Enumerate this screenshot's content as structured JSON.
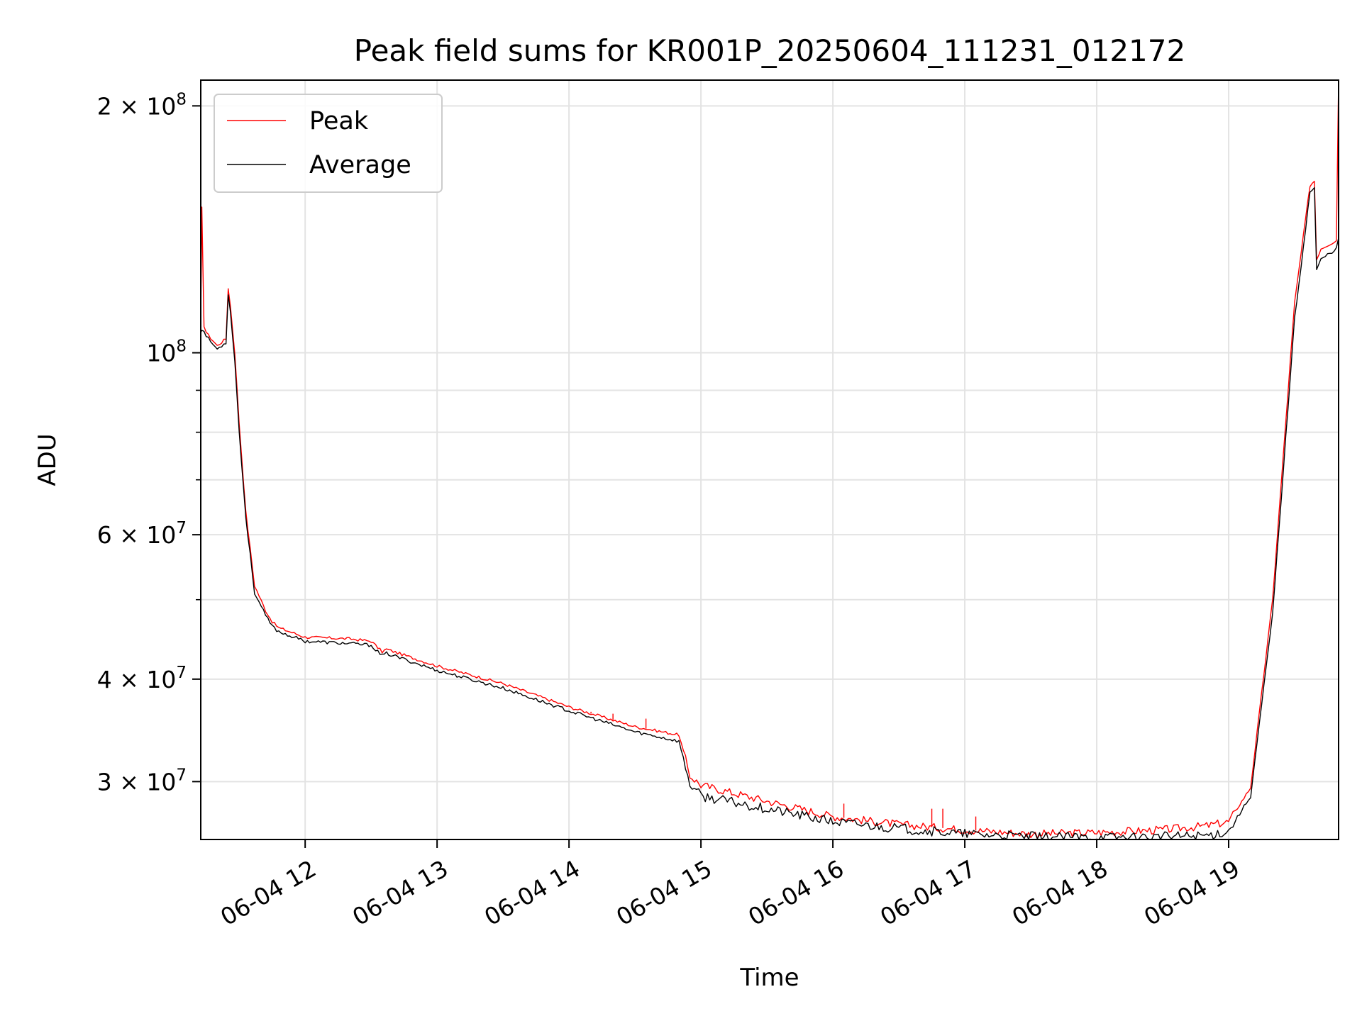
{
  "chart_data": {
    "type": "line",
    "title": "Peak field sums for KR001P_20250604_111231_012172",
    "xlabel": "Time",
    "ylabel": "ADU",
    "y_scale": "log",
    "ylim": [
      25500000,
      215000000
    ],
    "xlim": [
      "2025-06-04 11:12:31",
      "2025-06-04 19:50:00"
    ],
    "x_ticks": [
      {
        "value": "2025-06-04 12:00",
        "label": "06-04 12"
      },
      {
        "value": "2025-06-04 13:00",
        "label": "06-04 13"
      },
      {
        "value": "2025-06-04 14:00",
        "label": "06-04 14"
      },
      {
        "value": "2025-06-04 15:00",
        "label": "06-04 15"
      },
      {
        "value": "2025-06-04 16:00",
        "label": "06-04 16"
      },
      {
        "value": "2025-06-04 17:00",
        "label": "06-04 17"
      },
      {
        "value": "2025-06-04 18:00",
        "label": "06-04 18"
      },
      {
        "value": "2025-06-04 19:00",
        "label": "06-04 19"
      }
    ],
    "y_major_ticks": [
      {
        "value": 30000000,
        "base": "3",
        "exp": "7"
      },
      {
        "value": 40000000,
        "base": "4",
        "exp": "7"
      },
      {
        "value": 60000000,
        "base": "6",
        "exp": "7"
      },
      {
        "value": 100000000,
        "base": "",
        "exp": "8"
      },
      {
        "value": 200000000,
        "base": "2",
        "exp": "8"
      }
    ],
    "y_minor_ticks": [
      50000000,
      70000000,
      80000000,
      90000000
    ],
    "grid": true,
    "legend_position": "top-left",
    "series": [
      {
        "name": "Peak",
        "color": "#ff0000",
        "x": [
          "2025-06-04 11:12:31",
          "2025-06-04 11:13:00",
          "2025-06-04 11:14:00",
          "2025-06-04 11:15:00",
          "2025-06-04 11:16:00",
          "2025-06-04 11:20:00",
          "2025-06-04 11:24:00",
          "2025-06-04 11:25:00",
          "2025-06-04 11:26:00",
          "2025-06-04 11:28:00",
          "2025-06-04 11:30:00",
          "2025-06-04 11:33:00",
          "2025-06-04 11:37:00",
          "2025-06-04 11:42:00",
          "2025-06-04 11:45:00",
          "2025-06-04 11:48:00",
          "2025-06-04 12:00:00",
          "2025-06-04 12:20:00",
          "2025-06-04 12:30:00",
          "2025-06-04 12:35:00",
          "2025-06-04 12:37:00",
          "2025-06-04 13:00:00",
          "2025-06-04 13:30:00",
          "2025-06-04 14:00:00",
          "2025-06-04 14:30:00",
          "2025-06-04 14:50:00",
          "2025-06-04 14:55:00",
          "2025-06-04 15:00:00",
          "2025-06-04 15:30:00",
          "2025-06-04 16:00:00",
          "2025-06-04 16:30:00",
          "2025-06-04 17:00:00",
          "2025-06-04 17:30:00",
          "2025-06-04 18:00:00",
          "2025-06-04 18:30:00",
          "2025-06-04 18:50:00",
          "2025-06-04 19:00:00",
          "2025-06-04 19:10:00",
          "2025-06-04 19:20:00",
          "2025-06-04 19:30:00",
          "2025-06-04 19:37:00",
          "2025-06-04 19:39:00",
          "2025-06-04 19:40:00",
          "2025-06-04 19:42:00",
          "2025-06-04 19:49:00",
          "2025-06-04 19:50:00"
        ],
        "values": [
          108000000,
          150000000,
          108000000,
          106000000,
          105000000,
          102000000,
          104000000,
          120000000,
          114000000,
          100000000,
          82000000,
          64000000,
          52000000,
          48500000,
          47000000,
          46200000,
          45000000,
          44800000,
          44500000,
          43200000,
          43500000,
          41500000,
          39500000,
          37000000,
          35000000,
          34200000,
          30500000,
          29700000,
          28400000,
          27200000,
          26600000,
          26200000,
          25900000,
          26000000,
          26200000,
          26500000,
          26800000,
          29500000,
          50000000,
          115000000,
          160000000,
          162000000,
          130000000,
          134000000,
          137000000,
          215000000
        ],
        "spikes": [
          {
            "x": "2025-06-04 14:10:00",
            "value": 36500000
          },
          {
            "x": "2025-06-04 14:20:00",
            "value": 36300000
          },
          {
            "x": "2025-06-04 14:35:00",
            "value": 35800000
          },
          {
            "x": "2025-06-04 16:05:00",
            "value": 28200000
          },
          {
            "x": "2025-06-04 16:45:00",
            "value": 27800000
          },
          {
            "x": "2025-06-04 16:50:00",
            "value": 27800000
          },
          {
            "x": "2025-06-04 17:05:00",
            "value": 27200000
          }
        ]
      },
      {
        "name": "Average",
        "color": "#000000",
        "x": [
          "2025-06-04 11:12:31",
          "2025-06-04 11:13:00",
          "2025-06-04 11:16:00",
          "2025-06-04 11:20:00",
          "2025-06-04 11:24:00",
          "2025-06-04 11:25:00",
          "2025-06-04 11:26:00",
          "2025-06-04 11:28:00",
          "2025-06-04 11:30:00",
          "2025-06-04 11:33:00",
          "2025-06-04 11:37:00",
          "2025-06-04 11:42:00",
          "2025-06-04 11:45:00",
          "2025-06-04 11:48:00",
          "2025-06-04 12:00:00",
          "2025-06-04 12:20:00",
          "2025-06-04 12:30:00",
          "2025-06-04 12:35:00",
          "2025-06-04 12:37:00",
          "2025-06-04 13:00:00",
          "2025-06-04 13:30:00",
          "2025-06-04 14:00:00",
          "2025-06-04 14:30:00",
          "2025-06-04 14:50:00",
          "2025-06-04 14:55:00",
          "2025-06-04 15:00:00",
          "2025-06-04 15:30:00",
          "2025-06-04 16:00:00",
          "2025-06-04 16:30:00",
          "2025-06-04 17:00:00",
          "2025-06-04 17:30:00",
          "2025-06-04 18:00:00",
          "2025-06-04 18:30:00",
          "2025-06-04 18:50:00",
          "2025-06-04 19:00:00",
          "2025-06-04 19:10:00",
          "2025-06-04 19:20:00",
          "2025-06-04 19:30:00",
          "2025-06-04 19:37:00",
          "2025-06-04 19:39:00",
          "2025-06-04 19:40:00",
          "2025-06-04 19:42:00",
          "2025-06-04 19:49:00",
          "2025-06-04 19:50:00"
        ],
        "values": [
          106000000,
          107000000,
          104000000,
          101000000,
          103000000,
          118000000,
          112000000,
          98000000,
          80000000,
          63000000,
          51000000,
          47800000,
          46400000,
          45700000,
          44500000,
          44200000,
          44000000,
          42700000,
          43000000,
          41000000,
          39000000,
          36600000,
          34500000,
          33600000,
          29800000,
          28800000,
          27800000,
          26800000,
          26300000,
          25900000,
          25700000,
          25650000,
          25700000,
          25800000,
          26100000,
          28800000,
          48000000,
          110000000,
          157000000,
          159000000,
          126000000,
          130000000,
          134000000,
          138000000
        ]
      }
    ]
  }
}
